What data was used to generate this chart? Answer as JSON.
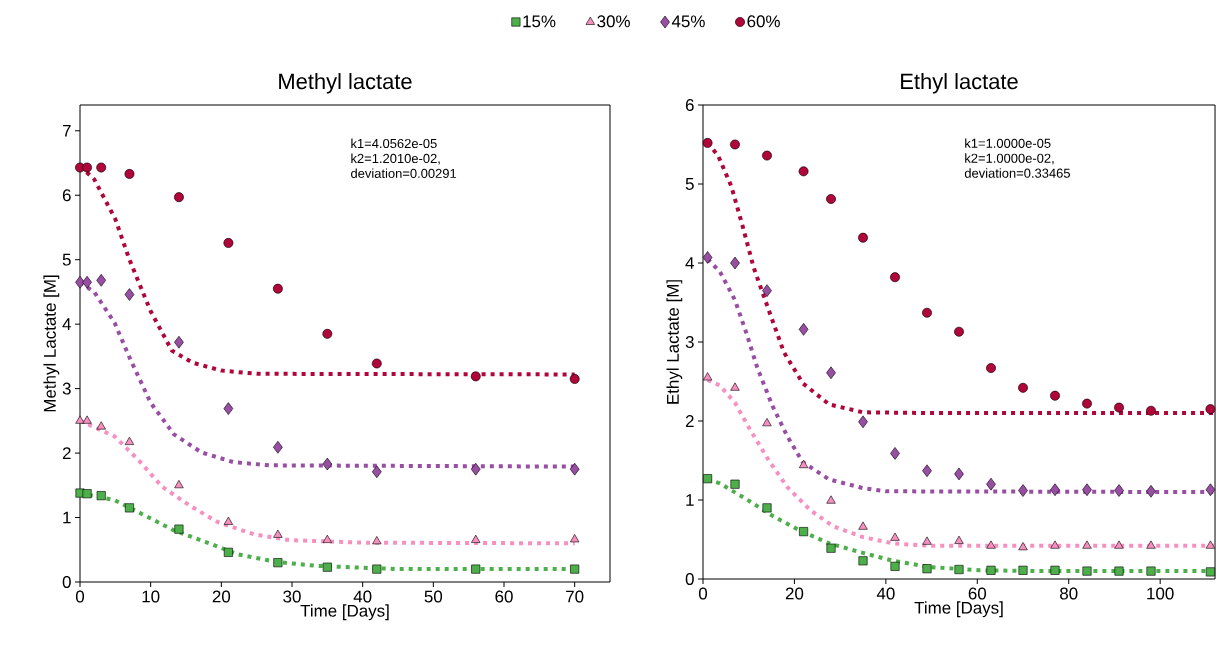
{
  "chart_data": [
    {
      "type": "scatter",
      "title": "Methyl lactate",
      "xlabel": "Time [Days]",
      "ylabel": "Methyl Lactate [M]",
      "xlim": [
        0,
        75
      ],
      "ylim": [
        0,
        7.4
      ],
      "xticks": [
        0,
        10,
        20,
        30,
        40,
        50,
        60,
        70
      ],
      "yticks": [
        0,
        1,
        2,
        3,
        4,
        5,
        6,
        7
      ],
      "legend": "top",
      "annotations": [
        "k1=4.0562e-05",
        "k2=1.2010e-02,",
        "deviation=0.00291"
      ],
      "series": [
        {
          "name": "15%",
          "color": "#4daf4a",
          "marker": "square",
          "x": [
            0,
            1,
            3,
            7,
            14,
            21,
            28,
            35,
            42,
            56,
            70
          ],
          "values": [
            1.38,
            1.37,
            1.34,
            1.15,
            0.82,
            0.46,
            0.3,
            0.23,
            0.2,
            0.2,
            0.2
          ]
        },
        {
          "name": "30%",
          "color": "#f78fc0",
          "marker": "triangle",
          "x": [
            0,
            1,
            3,
            7,
            14,
            21,
            28,
            35,
            42,
            56,
            70
          ],
          "values": [
            2.5,
            2.5,
            2.41,
            2.17,
            1.5,
            0.93,
            0.73,
            0.65,
            0.63,
            0.65,
            0.66
          ]
        },
        {
          "name": "45%",
          "color": "#984ea3",
          "marker": "diamond",
          "x": [
            0,
            1,
            3,
            7,
            14,
            21,
            28,
            35,
            42,
            56,
            70
          ],
          "values": [
            4.65,
            4.65,
            4.68,
            4.46,
            3.72,
            2.69,
            2.09,
            1.83,
            1.71,
            1.75,
            1.75
          ]
        },
        {
          "name": "60%",
          "color": "#b0063a",
          "marker": "circle",
          "x": [
            0,
            1,
            3,
            7,
            14,
            21,
            28,
            35,
            42,
            56,
            70
          ],
          "values": [
            6.43,
            6.43,
            6.43,
            6.33,
            5.97,
            5.26,
            4.55,
            3.85,
            3.39,
            3.19,
            3.15
          ]
        },
        {
          "type": "line",
          "color": "#4daf4a",
          "line_style": "dotted",
          "marker": "none",
          "x": [
            0,
            4.9,
            9.4,
            13.3,
            17.8,
            22.3,
            27.9,
            33.5,
            45,
            70
          ],
          "values": [
            1.38,
            1.27,
            1.02,
            0.8,
            0.62,
            0.43,
            0.31,
            0.25,
            0.2,
            0.2
          ]
        },
        {
          "type": "line",
          "color": "#f78fc0",
          "line_style": "dotted",
          "marker": "none",
          "x": [
            0,
            4.9,
            8.3,
            11.6,
            15.6,
            19.5,
            24.6,
            29.6,
            40,
            70
          ],
          "values": [
            2.5,
            2.26,
            1.89,
            1.48,
            1.18,
            0.93,
            0.74,
            0.65,
            0.61,
            0.6
          ]
        },
        {
          "type": "line",
          "color": "#984ea3",
          "line_style": "dotted",
          "marker": "none",
          "x": [
            0,
            2,
            4.9,
            7.1,
            10,
            13.3,
            17.2,
            21.7,
            26.8,
            70
          ],
          "values": [
            4.65,
            4.5,
            4.02,
            3.46,
            2.78,
            2.29,
            2.01,
            1.86,
            1.81,
            1.79
          ]
        },
        {
          "type": "line",
          "color": "#b0063a",
          "line_style": "dotted",
          "marker": "none",
          "x": [
            0,
            2,
            5,
            7,
            10,
            13,
            16,
            20,
            25,
            70
          ],
          "values": [
            6.45,
            6.25,
            5.63,
            5.0,
            4.2,
            3.59,
            3.4,
            3.28,
            3.23,
            3.22
          ]
        }
      ]
    },
    {
      "type": "scatter",
      "title": "Ethyl lactate",
      "xlabel": "Time [Days]",
      "ylabel": "Ethyl Lactate [M]",
      "xlim": [
        0,
        112
      ],
      "ylim": [
        0,
        6
      ],
      "xticks": [
        0,
        20,
        40,
        60,
        80,
        100
      ],
      "yticks": [
        0,
        1,
        2,
        3,
        4,
        5,
        6
      ],
      "annotations": [
        "k1=1.0000e-05",
        "k2=1.0000e-02,",
        "deviation=0.33465"
      ],
      "series": [
        {
          "color": "#4daf4a",
          "marker": "square",
          "x": [
            1,
            7,
            14,
            22,
            28,
            35,
            42,
            49,
            56,
            63,
            70,
            77,
            84,
            91,
            98,
            111
          ],
          "values": [
            1.27,
            1.2,
            0.9,
            0.6,
            0.39,
            0.23,
            0.16,
            0.13,
            0.12,
            0.11,
            0.11,
            0.11,
            0.1,
            0.1,
            0.1,
            0.09
          ]
        },
        {
          "color": "#f78fc0",
          "marker": "triangle",
          "x": [
            1,
            7,
            14,
            22,
            28,
            35,
            42,
            49,
            56,
            63,
            70,
            77,
            84,
            91,
            98,
            111
          ],
          "values": [
            2.55,
            2.42,
            1.97,
            1.44,
            0.99,
            0.66,
            0.52,
            0.47,
            0.48,
            0.42,
            0.4,
            0.42,
            0.42,
            0.42,
            0.42,
            0.42
          ]
        },
        {
          "color": "#984ea3",
          "marker": "diamond",
          "x": [
            1,
            7,
            14,
            22,
            28,
            35,
            42,
            49,
            56,
            63,
            70,
            77,
            84,
            91,
            98,
            111
          ],
          "values": [
            4.07,
            4.0,
            3.65,
            3.16,
            2.61,
            1.99,
            1.59,
            1.37,
            1.33,
            1.2,
            1.12,
            1.13,
            1.13,
            1.12,
            1.11,
            1.13
          ]
        },
        {
          "color": "#b0063a",
          "marker": "circle",
          "x": [
            1,
            7,
            14,
            22,
            28,
            35,
            42,
            49,
            56,
            63,
            70,
            77,
            84,
            91,
            98,
            111
          ],
          "values": [
            5.52,
            5.5,
            5.36,
            5.16,
            4.81,
            4.32,
            3.82,
            3.37,
            3.13,
            2.67,
            2.42,
            2.32,
            2.22,
            2.17,
            2.13,
            2.15
          ]
        },
        {
          "type": "line",
          "color": "#4daf4a",
          "line_style": "dotted",
          "marker": "none",
          "x": [
            1,
            3.7,
            9.5,
            15.2,
            21,
            27.6,
            35,
            41.6,
            49.8,
            60.5,
            75,
            112
          ],
          "values": [
            1.26,
            1.21,
            1.01,
            0.8,
            0.62,
            0.45,
            0.33,
            0.23,
            0.15,
            0.11,
            0.1,
            0.1
          ]
        },
        {
          "type": "line",
          "color": "#f78fc0",
          "line_style": "dotted",
          "marker": "none",
          "x": [
            1,
            3.7,
            7,
            10.3,
            14.4,
            18.5,
            23.5,
            28.4,
            35,
            41.6,
            50,
            112
          ],
          "values": [
            2.52,
            2.45,
            2.23,
            1.89,
            1.5,
            1.16,
            0.87,
            0.67,
            0.53,
            0.45,
            0.42,
            0.42
          ]
        },
        {
          "type": "line",
          "color": "#984ea3",
          "line_style": "dotted",
          "marker": "none",
          "x": [
            1,
            3.7,
            7,
            9.5,
            11.9,
            15.2,
            18.5,
            21.8,
            27.6,
            35,
            40,
            112
          ],
          "values": [
            4.05,
            3.89,
            3.53,
            3.11,
            2.67,
            2.19,
            1.8,
            1.48,
            1.26,
            1.15,
            1.11,
            1.1
          ]
        },
        {
          "type": "line",
          "color": "#b0063a",
          "line_style": "dotted",
          "marker": "none",
          "x": [
            1,
            3.3,
            6.2,
            8.6,
            11.1,
            14.4,
            17.7,
            21.8,
            27.6,
            35,
            50,
            112
          ],
          "values": [
            5.52,
            5.36,
            4.97,
            4.48,
            3.94,
            3.4,
            2.87,
            2.48,
            2.21,
            2.11,
            2.1,
            2.1
          ]
        }
      ]
    }
  ]
}
